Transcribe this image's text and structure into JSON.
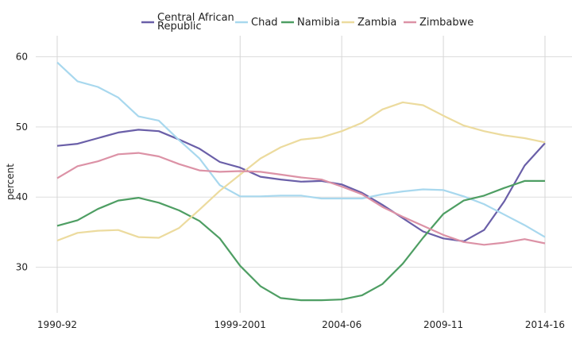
{
  "chart_data": {
    "type": "line",
    "title": "",
    "xlabel": "",
    "ylabel": "percent",
    "ylim": [
      23.5,
      63
    ],
    "y_ticks": [
      30,
      40,
      50,
      60
    ],
    "x": [
      "1990-92",
      "1991-93",
      "1992-94",
      "1993-95",
      "1994-96",
      "1995-97",
      "1996-98",
      "1997-99",
      "1998-2000",
      "1999-2001",
      "2000-02",
      "2001-03",
      "2002-04",
      "2003-05",
      "2004-06",
      "2005-07",
      "2006-08",
      "2007-09",
      "2008-10",
      "2009-11",
      "2010-12",
      "2011-13",
      "2012-14",
      "2013-15",
      "2014-16"
    ],
    "x_tick_labels": [
      "1990-92",
      "1999-2001",
      "2004-06",
      "2009-11",
      "2014-16"
    ],
    "grid": true,
    "legend_position": "top-center",
    "series": [
      {
        "name": "Central African Republic",
        "legend_lines": [
          "Central African",
          "Republic"
        ],
        "color": "#6a5fa8",
        "values": [
          47.3,
          47.6,
          48.4,
          49.2,
          49.6,
          49.4,
          48.2,
          46.9,
          45.0,
          44.2,
          42.9,
          42.5,
          42.2,
          42.3,
          41.8,
          40.6,
          38.9,
          37.0,
          35.1,
          34.1,
          33.7,
          35.3,
          39.4,
          44.5,
          47.7
        ]
      },
      {
        "name": "Chad",
        "color": "#a8d8ee",
        "values": [
          59.2,
          56.5,
          55.7,
          54.2,
          51.5,
          50.9,
          48.1,
          45.5,
          41.7,
          40.1,
          40.1,
          40.2,
          40.2,
          39.8,
          39.8,
          39.8,
          40.4,
          40.8,
          41.1,
          41.0,
          40.1,
          39.0,
          37.5,
          36.0,
          34.3
        ]
      },
      {
        "name": "Namibia",
        "color": "#4e9e63",
        "values": [
          35.9,
          36.7,
          38.3,
          39.5,
          39.9,
          39.2,
          38.1,
          36.6,
          34.1,
          30.2,
          27.3,
          25.6,
          25.3,
          25.3,
          25.4,
          26.0,
          27.6,
          30.5,
          34.2,
          37.6,
          39.5,
          40.2,
          41.3,
          42.3,
          42.3
        ]
      },
      {
        "name": "Zambia",
        "color": "#ecdb9e",
        "values": [
          33.8,
          34.9,
          35.2,
          35.3,
          34.3,
          34.2,
          35.6,
          38.2,
          40.9,
          43.2,
          45.5,
          47.1,
          48.2,
          48.5,
          49.4,
          50.6,
          52.5,
          53.5,
          53.1,
          51.6,
          50.2,
          49.4,
          48.8,
          48.4,
          47.8
        ]
      },
      {
        "name": "Zimbabwe",
        "color": "#dc92a6",
        "values": [
          42.7,
          44.4,
          45.1,
          46.1,
          46.3,
          45.8,
          44.7,
          43.8,
          43.6,
          43.7,
          43.6,
          43.2,
          42.8,
          42.5,
          41.5,
          40.4,
          38.6,
          37.2,
          35.9,
          34.6,
          33.6,
          33.2,
          33.5,
          34.0,
          33.4
        ]
      }
    ]
  }
}
